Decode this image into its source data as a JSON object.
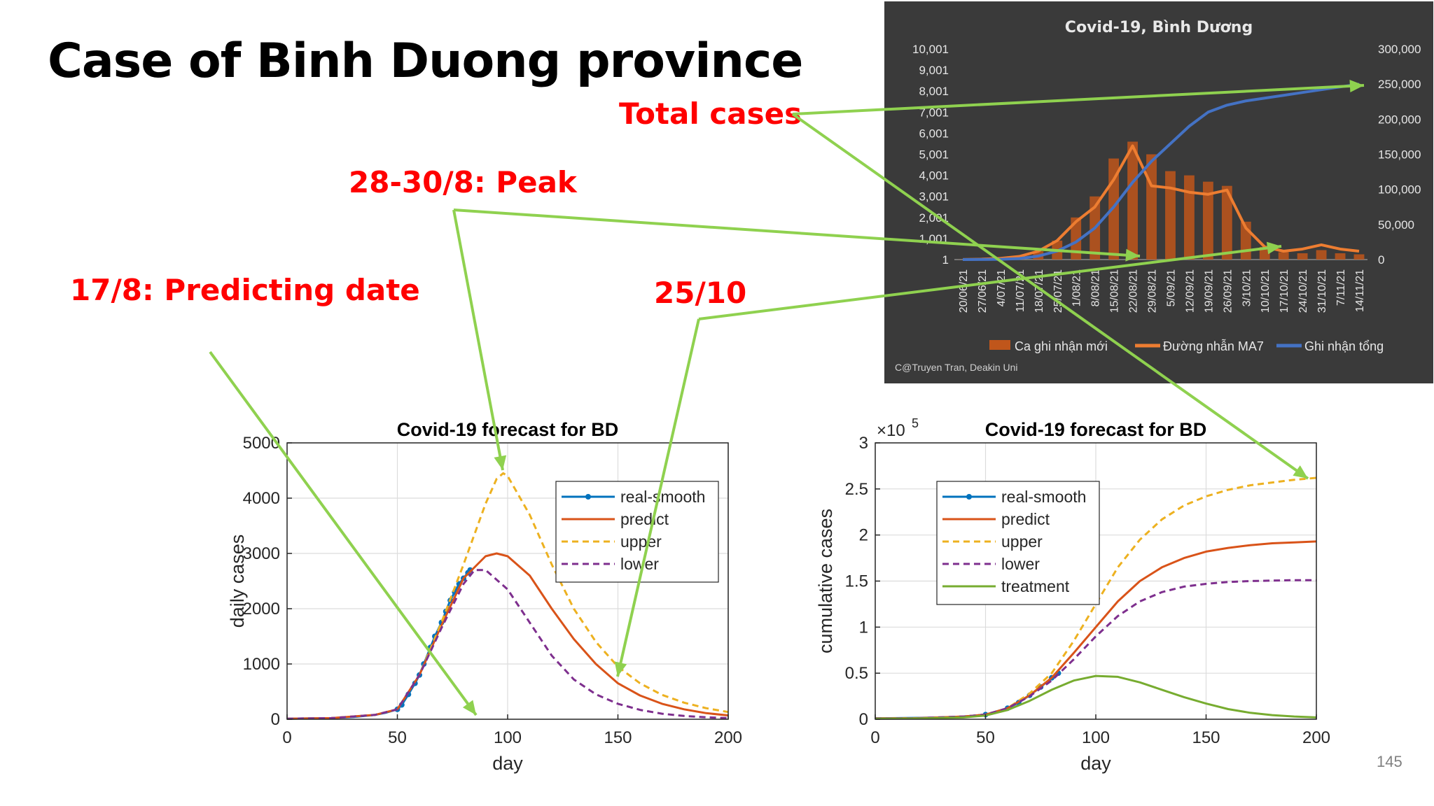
{
  "slide": {
    "title": "Case of Binh Duong province",
    "page_number": "145",
    "annotations": {
      "total_cases": "Total cases",
      "peak": "28-30/8: Peak",
      "predicting_date": "17/8: Predicting date",
      "oct25": "25/10"
    }
  },
  "chart_data": [
    {
      "type": "bar",
      "title": "Covid-19, Bình Dương",
      "background": "#3a3a3a",
      "left_ticks": [
        "10,001",
        "9,001",
        "8,001",
        "7,001",
        "6,001",
        "5,001",
        "4,001",
        "3,001",
        "2,001",
        "1,001",
        "1"
      ],
      "right_ticks": [
        "300,000",
        "250,000",
        "200,000",
        "150,000",
        "100,000",
        "50,000",
        "0"
      ],
      "ylim_left": [
        1,
        10001
      ],
      "ylim_right": [
        0,
        300000
      ],
      "categories": [
        "20/06/21",
        "27/06/21",
        "4/07/21",
        "11/07/21",
        "18/07/21",
        "25/07/21",
        "1/08/21",
        "8/08/21",
        "15/08/21",
        "22/08/21",
        "29/08/21",
        "5/09/21",
        "12/09/21",
        "19/09/21",
        "26/09/21",
        "3/10/21",
        "10/10/21",
        "17/10/21",
        "24/10/21",
        "31/10/21",
        "7/11/21",
        "14/11/21"
      ],
      "series": [
        {
          "name": "Ca ghi nhận mới",
          "kind": "bar",
          "color": "#c0561b",
          "values": [
            5,
            20,
            60,
            150,
            400,
            900,
            2000,
            3000,
            4800,
            5600,
            5000,
            4200,
            4000,
            3700,
            3500,
            1800,
            600,
            350,
            300,
            450,
            300,
            250
          ]
        },
        {
          "name": "Đường nhẫn MA7",
          "kind": "line",
          "color": "#ed7d31",
          "values": [
            5,
            20,
            60,
            150,
            400,
            900,
            1800,
            2500,
            3800,
            5400,
            3500,
            3400,
            3200,
            3100,
            3300,
            1500,
            600,
            400,
            500,
            700,
            500,
            400
          ]
        },
        {
          "name": "Ghi nhận tổng",
          "kind": "line",
          "axis": "right",
          "color": "#4472c4",
          "values": [
            0,
            100,
            400,
            1500,
            5000,
            12000,
            25000,
            45000,
            75000,
            110000,
            140000,
            165000,
            190000,
            210000,
            220000,
            226000,
            230000,
            234000,
            238000,
            242000,
            246000,
            250000
          ]
        }
      ],
      "legend": "bottom",
      "credit": "C@Truyen Tran, Deakin Uni"
    },
    {
      "type": "line",
      "title": "Covid-19 forecast for BD",
      "xlabel": "day",
      "ylabel": "daily cases",
      "xlim": [
        0,
        200
      ],
      "ylim": [
        0,
        5000
      ],
      "xticks": [
        0,
        50,
        100,
        150,
        200
      ],
      "yticks": [
        0,
        1000,
        2000,
        3000,
        4000,
        5000
      ],
      "grid": true,
      "legend": "top-right",
      "series": [
        {
          "name": "real-smooth",
          "style": "line-dot",
          "color": "#0072bd",
          "x": [
            0,
            10,
            20,
            30,
            40,
            45,
            50,
            52,
            55,
            58,
            60,
            62,
            65,
            67,
            70,
            72,
            74,
            76,
            78,
            80,
            82,
            83
          ],
          "y": [
            10,
            15,
            20,
            40,
            80,
            120,
            180,
            260,
            450,
            650,
            800,
            1000,
            1300,
            1500,
            1750,
            1950,
            2150,
            2300,
            2450,
            2550,
            2650,
            2700
          ]
        },
        {
          "name": "predict",
          "style": "solid",
          "color": "#d95319",
          "x": [
            0,
            20,
            40,
            50,
            60,
            70,
            80,
            90,
            95,
            100,
            110,
            120,
            130,
            140,
            150,
            160,
            170,
            180,
            190,
            200
          ],
          "y": [
            10,
            20,
            80,
            180,
            800,
            1700,
            2550,
            2950,
            3000,
            2950,
            2600,
            2000,
            1450,
            1000,
            650,
            430,
            280,
            180,
            110,
            70
          ]
        },
        {
          "name": "upper",
          "style": "dashed",
          "color": "#edb120",
          "x": [
            0,
            20,
            40,
            50,
            60,
            70,
            80,
            90,
            95,
            98,
            100,
            110,
            120,
            130,
            140,
            150,
            160,
            170,
            180,
            190,
            200
          ],
          "y": [
            10,
            20,
            80,
            180,
            800,
            1750,
            2800,
            3900,
            4350,
            4450,
            4400,
            3700,
            2800,
            2000,
            1400,
            950,
            650,
            440,
            300,
            200,
            130
          ]
        },
        {
          "name": "lower",
          "style": "dashed",
          "color": "#7e2f8e",
          "x": [
            0,
            20,
            40,
            50,
            60,
            70,
            80,
            85,
            90,
            100,
            110,
            120,
            130,
            140,
            150,
            160,
            170,
            180,
            190,
            200
          ],
          "y": [
            10,
            20,
            80,
            180,
            800,
            1650,
            2450,
            2700,
            2700,
            2350,
            1750,
            1150,
            720,
            450,
            280,
            170,
            100,
            60,
            35,
            20
          ]
        }
      ]
    },
    {
      "type": "line",
      "title": "Covid-19 forecast for BD",
      "xlabel": "day",
      "ylabel": "cumulative cases",
      "exponent_label": "×10",
      "exponent_power": "5",
      "xlim": [
        0,
        200
      ],
      "ylim": [
        0,
        3
      ],
      "xticks": [
        0,
        50,
        100,
        150,
        200
      ],
      "yticks": [
        0,
        0.5,
        1,
        1.5,
        2,
        2.5,
        3
      ],
      "grid": true,
      "legend": "top-left",
      "series": [
        {
          "name": "real-smooth",
          "style": "line-dot",
          "color": "#0072bd",
          "x": [
            0,
            10,
            20,
            30,
            40,
            50,
            60,
            65,
            70,
            75,
            80,
            83
          ],
          "y": [
            0.01,
            0.012,
            0.015,
            0.02,
            0.03,
            0.05,
            0.12,
            0.18,
            0.26,
            0.35,
            0.45,
            0.5
          ]
        },
        {
          "name": "predict",
          "style": "solid",
          "color": "#d95319",
          "x": [
            0,
            20,
            40,
            50,
            60,
            70,
            80,
            90,
            100,
            110,
            120,
            130,
            140,
            150,
            160,
            170,
            180,
            190,
            200
          ],
          "y": [
            0.01,
            0.012,
            0.03,
            0.05,
            0.12,
            0.26,
            0.45,
            0.72,
            1.0,
            1.28,
            1.5,
            1.65,
            1.75,
            1.82,
            1.86,
            1.89,
            1.91,
            1.92,
            1.93
          ]
        },
        {
          "name": "upper",
          "style": "dashed",
          "color": "#edb120",
          "x": [
            0,
            20,
            40,
            50,
            60,
            70,
            80,
            90,
            100,
            110,
            120,
            130,
            140,
            150,
            160,
            170,
            180,
            190,
            200
          ],
          "y": [
            0.01,
            0.012,
            0.03,
            0.05,
            0.12,
            0.28,
            0.5,
            0.85,
            1.25,
            1.65,
            1.95,
            2.17,
            2.32,
            2.42,
            2.49,
            2.54,
            2.57,
            2.6,
            2.62
          ]
        },
        {
          "name": "lower",
          "style": "dashed",
          "color": "#7e2f8e",
          "x": [
            0,
            20,
            40,
            50,
            60,
            70,
            80,
            90,
            100,
            110,
            120,
            130,
            140,
            150,
            160,
            170,
            180,
            190,
            200
          ],
          "y": [
            0.01,
            0.012,
            0.03,
            0.05,
            0.12,
            0.25,
            0.42,
            0.65,
            0.9,
            1.12,
            1.28,
            1.38,
            1.44,
            1.47,
            1.49,
            1.5,
            1.505,
            1.51,
            1.51
          ]
        },
        {
          "name": "treatment",
          "style": "solid",
          "color": "#77ac30",
          "x": [
            0,
            20,
            40,
            50,
            60,
            70,
            80,
            90,
            100,
            110,
            120,
            130,
            140,
            150,
            160,
            170,
            180,
            190,
            200
          ],
          "y": [
            0.005,
            0.008,
            0.02,
            0.04,
            0.1,
            0.2,
            0.32,
            0.42,
            0.47,
            0.46,
            0.4,
            0.32,
            0.24,
            0.17,
            0.11,
            0.07,
            0.045,
            0.03,
            0.02
          ]
        }
      ]
    }
  ],
  "arrow_color": "#8fd14f"
}
